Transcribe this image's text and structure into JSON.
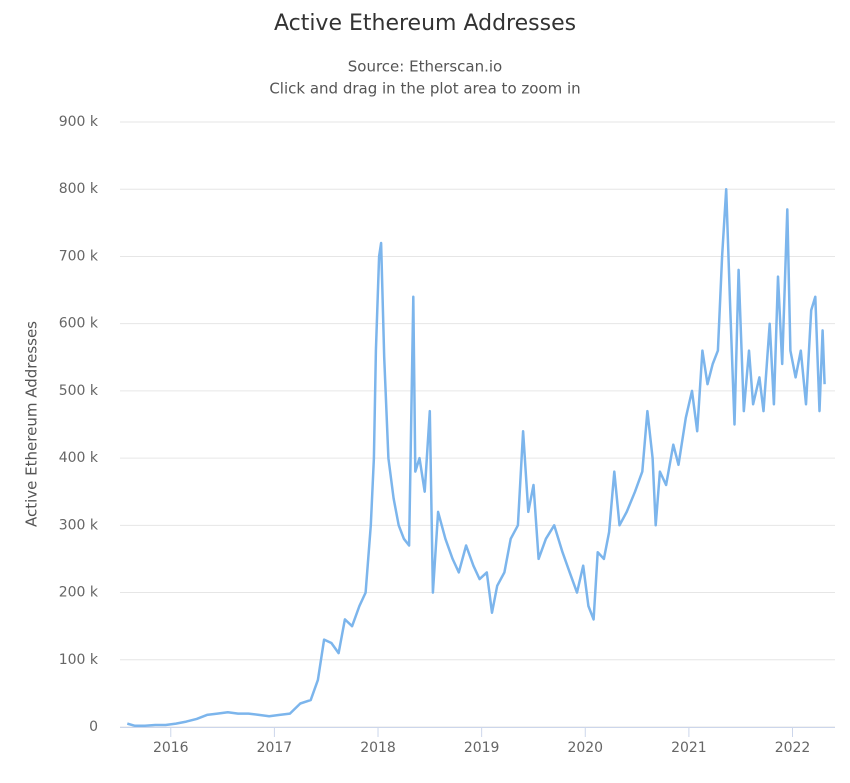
{
  "chart_data": {
    "type": "line",
    "title": "Active Ethereum Addresses",
    "subtitle": "Source: Etherscan.io",
    "note": "Click and drag in the plot area to zoom in",
    "y_label": "Active Ethereum Addresses",
    "color": "#7cb5ec",
    "grid": true,
    "xlim": [
      2015.51,
      2022.41
    ],
    "xticks": [
      2016,
      2017,
      2018,
      2019,
      2020,
      2021,
      2022
    ],
    "ylim": [
      0,
      900000
    ],
    "yticks": [
      0,
      {
        "value": 100000,
        "label": "100 k"
      },
      {
        "value": 200000,
        "label": "200 k"
      },
      {
        "value": 300000,
        "label": "300 k"
      },
      {
        "value": 400000,
        "label": "400 k"
      },
      {
        "value": 500000,
        "label": "500 k"
      },
      {
        "value": 600000,
        "label": "600 k"
      },
      {
        "value": 700000,
        "label": "700 k"
      },
      {
        "value": 800000,
        "label": "800 k"
      },
      {
        "value": 900000,
        "label": "900 k"
      }
    ],
    "x": [
      2015.58,
      2015.65,
      2015.75,
      2015.85,
      2015.95,
      2016.05,
      2016.15,
      2016.25,
      2016.35,
      2016.45,
      2016.55,
      2016.65,
      2016.75,
      2016.85,
      2016.95,
      2017.05,
      2017.15,
      2017.25,
      2017.35,
      2017.42,
      2017.48,
      2017.55,
      2017.62,
      2017.68,
      2017.75,
      2017.82,
      2017.88,
      2017.93,
      2017.96,
      2017.98,
      2018.01,
      2018.03,
      2018.06,
      2018.1,
      2018.15,
      2018.2,
      2018.25,
      2018.3,
      2018.34,
      2018.36,
      2018.4,
      2018.45,
      2018.5,
      2018.53,
      2018.58,
      2018.65,
      2018.72,
      2018.78,
      2018.85,
      2018.92,
      2018.98,
      2019.05,
      2019.1,
      2019.15,
      2019.22,
      2019.28,
      2019.35,
      2019.4,
      2019.45,
      2019.5,
      2019.55,
      2019.62,
      2019.7,
      2019.78,
      2019.85,
      2019.92,
      2019.98,
      2020.03,
      2020.08,
      2020.12,
      2020.18,
      2020.23,
      2020.28,
      2020.33,
      2020.4,
      2020.48,
      2020.55,
      2020.6,
      2020.65,
      2020.68,
      2020.72,
      2020.78,
      2020.85,
      2020.9,
      2020.97,
      2021.03,
      2021.08,
      2021.13,
      2021.18,
      2021.23,
      2021.28,
      2021.32,
      2021.36,
      2021.4,
      2021.44,
      2021.48,
      2021.53,
      2021.58,
      2021.62,
      2021.68,
      2021.72,
      2021.78,
      2021.82,
      2021.86,
      2021.9,
      2021.95,
      2021.98,
      2022.03,
      2022.08,
      2022.13,
      2022.18,
      2022.22,
      2022.26,
      2022.29,
      2022.31
    ],
    "values": [
      5000,
      2000,
      2000,
      3000,
      3000,
      5000,
      8000,
      12000,
      18000,
      20000,
      22000,
      20000,
      20000,
      18000,
      16000,
      18000,
      20000,
      35000,
      40000,
      70000,
      130000,
      125000,
      110000,
      160000,
      150000,
      180000,
      200000,
      300000,
      400000,
      560000,
      700000,
      720000,
      550000,
      400000,
      340000,
      300000,
      280000,
      270000,
      640000,
      380000,
      400000,
      350000,
      470000,
      200000,
      320000,
      280000,
      250000,
      230000,
      270000,
      240000,
      220000,
      230000,
      170000,
      210000,
      230000,
      280000,
      300000,
      440000,
      320000,
      360000,
      250000,
      280000,
      300000,
      260000,
      230000,
      200000,
      240000,
      180000,
      160000,
      260000,
      250000,
      290000,
      380000,
      300000,
      320000,
      350000,
      380000,
      470000,
      400000,
      300000,
      380000,
      360000,
      420000,
      390000,
      460000,
      500000,
      440000,
      560000,
      510000,
      540000,
      560000,
      700000,
      800000,
      620000,
      450000,
      680000,
      470000,
      560000,
      480000,
      520000,
      470000,
      600000,
      480000,
      670000,
      540000,
      770000,
      560000,
      520000,
      560000,
      480000,
      620000,
      640000,
      470000,
      590000,
      510000
    ]
  }
}
